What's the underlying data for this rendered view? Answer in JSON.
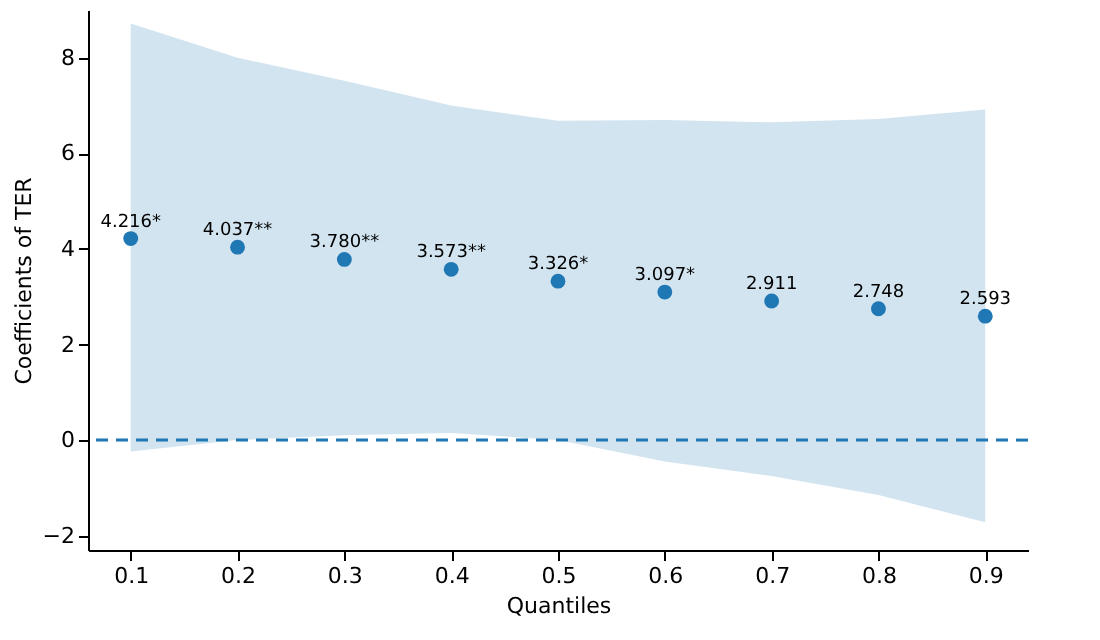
{
  "chart_data": {
    "type": "scatter",
    "xlabel": "Quantiles",
    "ylabel": "Coefficients of TER",
    "x": [
      0.1,
      0.2,
      0.3,
      0.4,
      0.5,
      0.6,
      0.7,
      0.8,
      0.9
    ],
    "series": [
      {
        "color": "#1f77b4",
        "values": [
          4.216,
          4.037,
          3.78,
          3.573,
          3.326,
          3.097,
          2.911,
          2.748,
          2.593
        ],
        "value_labels": [
          "4.216*",
          "4.037**",
          "3.780**",
          "3.573**",
          "3.326*",
          "3.097*",
          "2.911",
          "2.748",
          "2.593"
        ],
        "lower": [
          -0.24,
          0.0,
          0.1,
          0.15,
          0.0,
          -0.45,
          -0.75,
          -1.15,
          -1.72
        ],
        "upper": [
          8.72,
          8.0,
          7.52,
          7.0,
          6.68,
          6.7,
          6.65,
          6.72,
          6.92
        ]
      }
    ],
    "xlim": [
      0.06,
      0.94
    ],
    "ylim": [
      -2.3,
      9.0
    ],
    "xticks": [
      0.1,
      0.2,
      0.3,
      0.4,
      0.5,
      0.6,
      0.7,
      0.8,
      0.9
    ],
    "yticks": [
      -2,
      0,
      2,
      4,
      6,
      8
    ],
    "ref_lines": [
      {
        "axis": "y",
        "value": 0,
        "color": "#1f77b4",
        "line_style": "dashed"
      }
    ],
    "grid": false,
    "marker": "circle"
  }
}
